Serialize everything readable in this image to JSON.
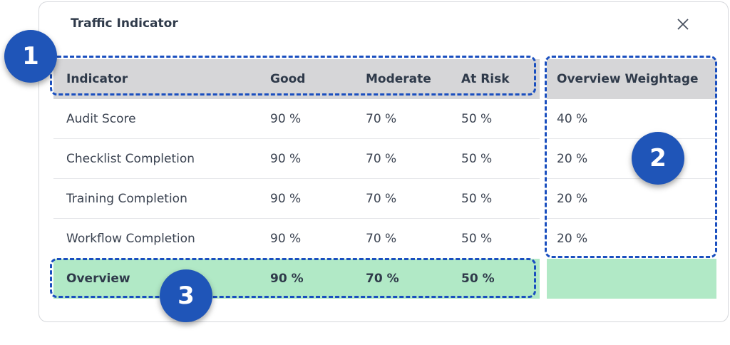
{
  "dialog": {
    "title": "Traffic Indicator",
    "close_icon": "close-icon"
  },
  "table": {
    "headers": [
      "Indicator",
      "Good",
      "Moderate",
      "At Risk",
      "Overview Weightage"
    ],
    "rows": [
      [
        "Audit Score",
        "90 %",
        "70 %",
        "50 %",
        "40 %"
      ],
      [
        "Checklist Completion",
        "90 %",
        "70 %",
        "50 %",
        "20 %"
      ],
      [
        "Training Completion",
        "90 %",
        "70 %",
        "50 %",
        "20 %"
      ],
      [
        "Workflow Completion",
        "90 %",
        "70 %",
        "50 %",
        "20 %"
      ]
    ],
    "overview": [
      "Overview",
      "90 %",
      "70 %",
      "50 %"
    ]
  },
  "callouts": [
    "1",
    "2",
    "3"
  ],
  "colors": {
    "header_bg": "#d6d6d8",
    "overview_bg": "#b1e9c6",
    "callout": "#1f55b8"
  }
}
